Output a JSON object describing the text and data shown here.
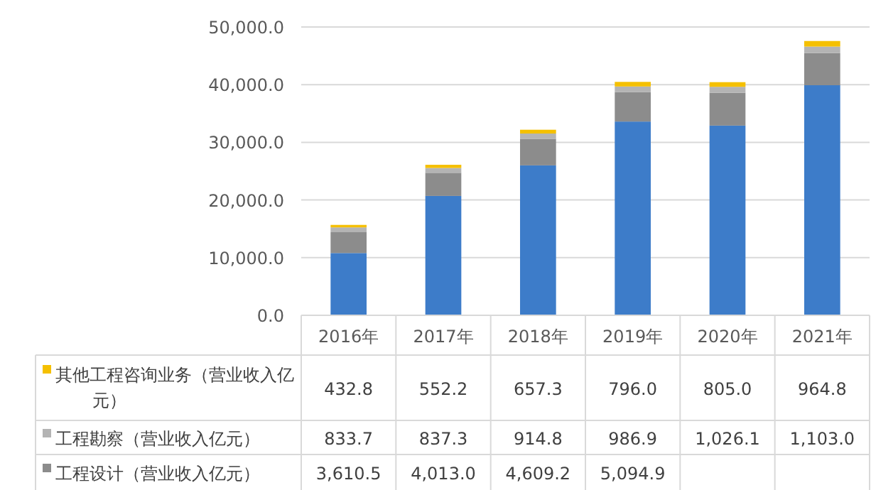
{
  "chart_data": {
    "type": "bar",
    "stacked": true,
    "grid": "y",
    "legend": "bottom",
    "categories": [
      "2016年",
      "2017年",
      "2018年",
      "2019年",
      "2020年",
      "2021年"
    ],
    "ylim": [
      0,
      50000
    ],
    "yticks": [
      {
        "value": 0,
        "label": "0.0"
      },
      {
        "value": 10000,
        "label": "10,000.0"
      },
      {
        "value": 20000,
        "label": "20,000.0"
      },
      {
        "value": 30000,
        "label": "30,000.0"
      },
      {
        "value": 40000,
        "label": "40,000.0"
      },
      {
        "value": 50000,
        "label": "50,000.0"
      }
    ],
    "series": [
      {
        "color": "#3d7cc9",
        "values": [
          10800,
          20700,
          26000,
          33600,
          32900,
          39900
        ]
      },
      {
        "name": "工程设计（营业收入亿元）",
        "color": "#8c8c8c",
        "values": [
          3610.5,
          4013.0,
          4609.2,
          5094.9,
          5700,
          5600
        ],
        "value_labels": [
          "3,610.5",
          "4,013.0",
          "4,609.2",
          "5,094.9",
          null,
          null
        ]
      },
      {
        "name": "工程勘察（营业收入亿元）",
        "color": "#b4b4b4",
        "values": [
          833.7,
          837.3,
          914.8,
          986.9,
          1026.1,
          1103.0
        ],
        "value_labels": [
          "833.7",
          "837.3",
          "914.8",
          "986.9",
          "1,026.1",
          "1,103.0"
        ]
      },
      {
        "name": "其他工程咨询业务（营业收入亿元）",
        "color": "#f5c000",
        "values": [
          432.8,
          552.2,
          657.3,
          796.0,
          805.0,
          964.8
        ],
        "value_labels": [
          "432.8",
          "552.2",
          "657.3",
          "796.0",
          "805.0",
          "964.8"
        ]
      }
    ]
  }
}
